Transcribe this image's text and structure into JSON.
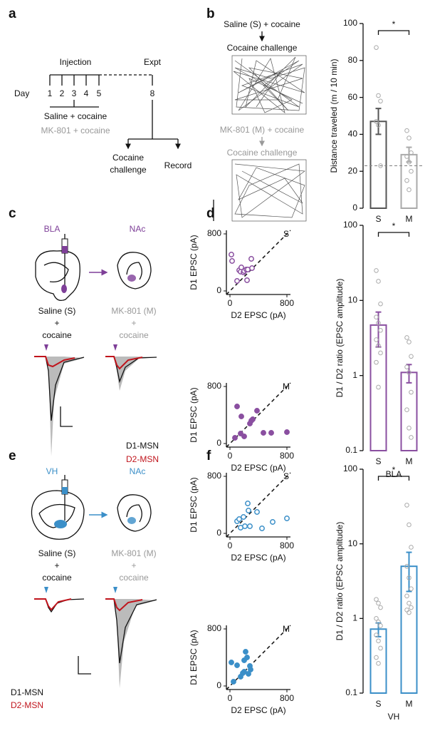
{
  "panels": {
    "a": {
      "label": "a",
      "injection": "Injection",
      "expt": "Expt",
      "day": "Day",
      "days": [
        "1",
        "2",
        "3",
        "4",
        "5"
      ],
      "day_expt": "8",
      "group1": "Saline + cocaine",
      "group2": "MK-801 + cocaine",
      "branch1": [
        "Cocaine",
        "challenge"
      ],
      "branch2": "Record"
    },
    "b": {
      "label": "b",
      "group1": "Saline (S) + cocaine",
      "challenge1": "Cocaine challenge",
      "group2": "MK-801 (M) + cocaine",
      "challenge2": "Cocaine challenge"
    },
    "c": {
      "label": "c",
      "source": "BLA",
      "target": "NAc",
      "saline": [
        "Saline (S)",
        "+",
        "cocaine"
      ],
      "mk": [
        "MK-801 (M)",
        "+",
        "cocaine"
      ],
      "legend": [
        "D1-MSN",
        "D2-MSN"
      ]
    },
    "d": {
      "label": "d"
    },
    "e": {
      "label": "e",
      "source": "VH",
      "target": "NAc",
      "saline": [
        "Saline (S)",
        "+",
        "cocaine"
      ],
      "mk": [
        "MK-801 (M)",
        "+",
        "cocaine"
      ],
      "legend": [
        "D1-MSN",
        "D2-MSN"
      ]
    },
    "f": {
      "label": "f"
    }
  },
  "chart_data": [
    {
      "type": "bar",
      "ylabel": "Distance traveled (m / 10 min)",
      "categories": [
        "S",
        "M"
      ],
      "values": [
        47,
        29
      ],
      "errors": [
        7,
        4
      ],
      "points": [
        [
          87,
          61,
          58,
          47,
          45,
          23
        ],
        [
          42,
          38,
          30,
          28,
          25,
          20,
          15,
          10
        ]
      ],
      "colors": [
        "#555555",
        "#aaaaaa"
      ],
      "reference": 23,
      "significance": "*",
      "ylim": [
        0,
        100
      ],
      "yticks": [
        0,
        20,
        40,
        60,
        80,
        100
      ],
      "log_scale": false
    },
    {
      "type": "scatter",
      "label": "S",
      "xlabel": "D2 EPSC (pA)",
      "ylabel": "D1 EPSC (pA)",
      "x": [
        20,
        30,
        100,
        130,
        150,
        160,
        190,
        200,
        230,
        240,
        250,
        300,
        310
      ],
      "y": [
        510,
        420,
        140,
        290,
        270,
        330,
        260,
        280,
        300,
        150,
        300,
        450,
        320
      ],
      "color": "#8a4fa0",
      "filled": false,
      "xlim": [
        -50,
        850
      ],
      "ylim": [
        -50,
        850
      ],
      "xticks": [
        0,
        800
      ],
      "yticks": [
        0,
        800
      ]
    },
    {
      "type": "scatter",
      "label": "M",
      "xlabel": "D2 EPSC (pA)",
      "ylabel": "D1 EPSC (pA)",
      "x": [
        70,
        100,
        150,
        160,
        200,
        280,
        300,
        320,
        380,
        470,
        580,
        800
      ],
      "y": [
        80,
        520,
        140,
        380,
        100,
        280,
        320,
        340,
        460,
        150,
        150,
        160
      ],
      "color": "#8a4fa0",
      "filled": true,
      "xlim": [
        -50,
        850
      ],
      "ylim": [
        -50,
        850
      ],
      "xticks": [
        0,
        800
      ],
      "yticks": [
        0,
        800
      ]
    },
    {
      "type": "bar",
      "ylabel": "D1 / D2 ratio (EPSC amplitude)",
      "xlabel": "BLA",
      "categories": [
        "S",
        "M"
      ],
      "values": [
        4.7,
        1.1
      ],
      "errors": [
        2.3,
        0.3
      ],
      "points": [
        [
          25,
          18,
          9,
          6,
          5,
          4,
          3,
          2.5,
          2,
          1.5,
          0.7
        ],
        [
          3.2,
          2.8,
          1.8,
          1.3,
          1.1,
          0.6,
          0.35,
          0.2,
          0.15
        ]
      ],
      "colors": [
        "#8a4fa0",
        "#8a4fa0"
      ],
      "significance": "*",
      "ylim": [
        0.1,
        100
      ],
      "yticks": [
        0.1,
        1,
        10,
        100
      ],
      "log_scale": true
    },
    {
      "type": "scatter",
      "label": "S",
      "xlabel": "D2 EPSC (pA)",
      "ylabel": "D1 EPSC (pA)",
      "x": [
        100,
        130,
        150,
        190,
        210,
        250,
        260,
        280,
        380,
        450,
        600,
        800
      ],
      "y": [
        170,
        200,
        80,
        230,
        100,
        420,
        320,
        100,
        300,
        70,
        160,
        210
      ],
      "color": "#3b8fc8",
      "filled": false,
      "xlim": [
        -50,
        850
      ],
      "ylim": [
        -50,
        850
      ],
      "xticks": [
        0,
        800
      ],
      "yticks": [
        0,
        800
      ]
    },
    {
      "type": "scatter",
      "label": "M",
      "xlabel": "D2 EPSC (pA)",
      "ylabel": "D1 EPSC (pA)",
      "x": [
        20,
        50,
        100,
        150,
        180,
        200,
        220,
        240,
        260,
        280,
        290,
        200
      ],
      "y": [
        330,
        60,
        290,
        130,
        180,
        200,
        480,
        400,
        170,
        280,
        230,
        360
      ],
      "color": "#3b8fc8",
      "filled": true,
      "xlim": [
        -50,
        850
      ],
      "ylim": [
        -50,
        850
      ],
      "xticks": [
        0,
        800
      ],
      "yticks": [
        0,
        800
      ]
    },
    {
      "type": "bar",
      "ylabel": "D1 / D2 ratio (EPSC amplitude)",
      "xlabel": "VH",
      "categories": [
        "S",
        "M"
      ],
      "values": [
        0.72,
        5.0
      ],
      "errors": [
        0.15,
        2.7
      ],
      "points": [
        [
          1.8,
          1.6,
          1.4,
          1.0,
          0.9,
          0.8,
          0.6,
          0.5,
          0.4,
          0.3,
          0.25
        ],
        [
          33,
          18,
          9,
          5,
          3.5,
          2.5,
          2,
          1.6,
          1.4,
          1.3,
          1.2
        ]
      ],
      "colors": [
        "#3b8fc8",
        "#3b8fc8"
      ],
      "significance": "*",
      "ylim": [
        0.1,
        100
      ],
      "yticks": [
        0.1,
        1,
        10,
        100
      ],
      "log_scale": true
    }
  ]
}
